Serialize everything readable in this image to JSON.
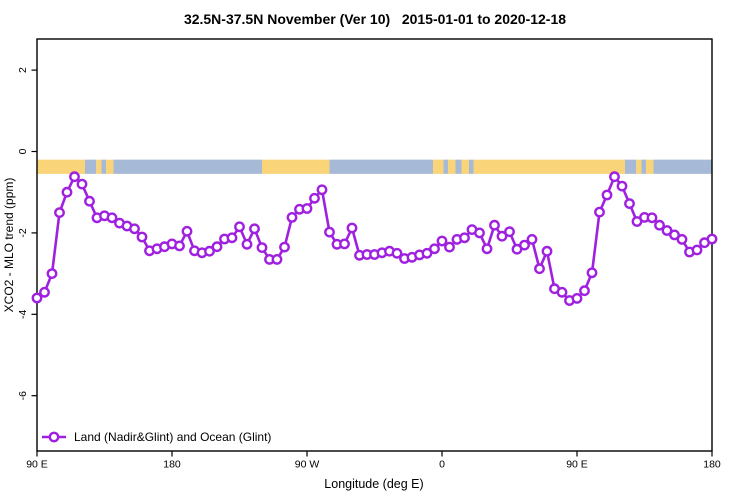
{
  "title": "32.5N-37.5N November (Ver 10)   2015-01-01 to 2020-12-18",
  "chart_data": {
    "type": "line",
    "title": "32.5N-37.5N November (Ver 10)   2015-01-01 to 2020-12-18",
    "xlabel": "Longitude (deg E)",
    "ylabel": "XCO2 - MLO trend (ppm)",
    "series_name": "Land (Nadir&Glint) and Ocean (Glint)",
    "series_color": "#A020E0",
    "marker": "open-circle",
    "grid": false,
    "xlim_deg_unwrapped": [
      90,
      540
    ],
    "ylim": [
      -7.36,
      2.76
    ],
    "x_deg": {
      "start": 90,
      "step": 5
    },
    "values": [
      -3.6,
      -3.46,
      -3.0,
      -1.5,
      -1.0,
      -0.62,
      -0.8,
      -1.22,
      -1.63,
      -1.58,
      -1.63,
      -1.76,
      -1.83,
      -1.9,
      -2.1,
      -2.44,
      -2.39,
      -2.34,
      -2.27,
      -2.32,
      -1.96,
      -2.44,
      -2.49,
      -2.45,
      -2.34,
      -2.15,
      -2.12,
      -1.85,
      -2.28,
      -1.9,
      -2.36,
      -2.65,
      -2.65,
      -2.35,
      -1.62,
      -1.42,
      -1.4,
      -1.15,
      -0.94,
      -1.98,
      -2.28,
      -2.27,
      -1.88,
      -2.55,
      -2.53,
      -2.53,
      -2.49,
      -2.45,
      -2.5,
      -2.63,
      -2.6,
      -2.54,
      -2.5,
      -2.39,
      -2.2,
      -2.35,
      -2.16,
      -2.12,
      -1.92,
      -2.0,
      -2.39,
      -1.81,
      -2.08,
      -1.97,
      -2.4,
      -2.3,
      -2.16,
      -2.88,
      -2.45,
      -3.37,
      -3.46,
      -3.66,
      -3.61,
      -3.42,
      -2.98,
      -1.49,
      -1.07,
      -0.62,
      -0.85,
      -1.28,
      -1.72,
      -1.62,
      -1.63,
      -1.81,
      -1.94,
      -2.05,
      -2.16,
      -2.47,
      -2.42,
      -2.24,
      -2.15
    ],
    "x_ticks": [
      {
        "deg": 90,
        "label": "90 E"
      },
      {
        "deg": 180,
        "label": "180"
      },
      {
        "deg": 270,
        "label": "90 W"
      },
      {
        "deg": 360,
        "label": "0"
      },
      {
        "deg": 450,
        "label": "90 E"
      },
      {
        "deg": 540,
        "label": "180"
      }
    ],
    "y_ticks": [
      {
        "value": 2,
        "label": "2"
      },
      {
        "value": 0,
        "label": "0"
      },
      {
        "value": -2,
        "label": "-2"
      },
      {
        "value": -4,
        "label": "-4"
      },
      {
        "value": -6,
        "label": "-6"
      }
    ],
    "legend": {
      "label": "Land (Nadir&Glint) and Ocean (Glint)",
      "position": "bottom-left"
    },
    "map_strip": {
      "meaning": "land/ocean map of the 32.5N-37.5N latitude band",
      "y_top_value": -0.2,
      "y_bottom_value": -0.55,
      "land_color": "#FAD478",
      "ocean_color": "#A6BAD8",
      "segments": [
        {
          "from": 90,
          "to": 122,
          "surface": "land"
        },
        {
          "from": 122,
          "to": 129.5,
          "surface": "ocean"
        },
        {
          "from": 129.5,
          "to": 133,
          "surface": "land"
        },
        {
          "from": 133,
          "to": 136,
          "surface": "ocean"
        },
        {
          "from": 136,
          "to": 141,
          "surface": "land"
        },
        {
          "from": 141,
          "to": 240,
          "surface": "ocean"
        },
        {
          "from": 240,
          "to": 285,
          "surface": "land"
        },
        {
          "from": 285,
          "to": 354,
          "surface": "ocean"
        },
        {
          "from": 354,
          "to": 361,
          "surface": "land"
        },
        {
          "from": 361,
          "to": 364,
          "surface": "ocean"
        },
        {
          "from": 364,
          "to": 369,
          "surface": "land"
        },
        {
          "from": 369,
          "to": 373,
          "surface": "ocean"
        },
        {
          "from": 373,
          "to": 378,
          "surface": "land"
        },
        {
          "from": 378,
          "to": 381,
          "surface": "ocean"
        },
        {
          "from": 381,
          "to": 482,
          "surface": "land"
        },
        {
          "from": 482,
          "to": 489.5,
          "surface": "ocean"
        },
        {
          "from": 489.5,
          "to": 493,
          "surface": "land"
        },
        {
          "from": 493,
          "to": 496,
          "surface": "ocean"
        },
        {
          "from": 496,
          "to": 501,
          "surface": "land"
        },
        {
          "from": 501,
          "to": 540,
          "surface": "ocean"
        }
      ]
    }
  }
}
